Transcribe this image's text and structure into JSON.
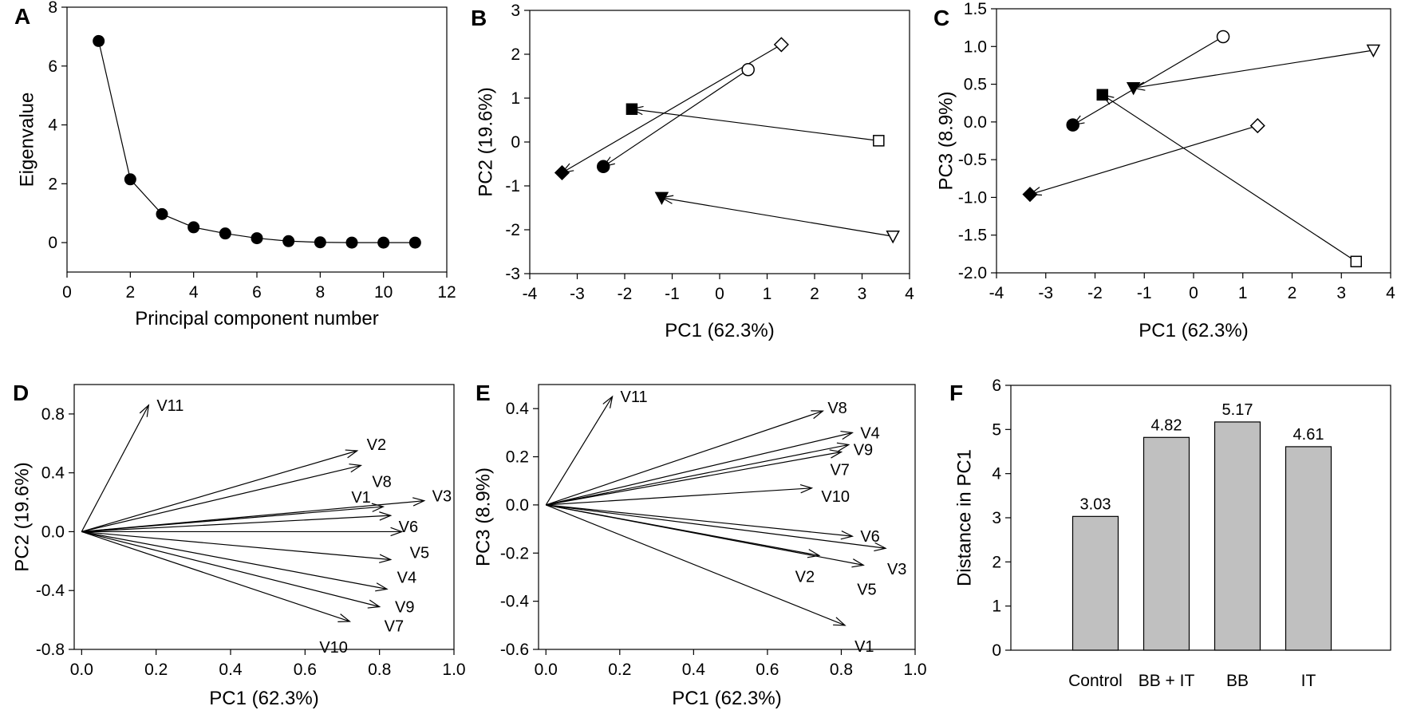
{
  "chart_data": [
    {
      "panel": "A",
      "type": "line",
      "xlabel": "Principal component number",
      "ylabel": "Eigenvalue",
      "xlim": [
        0,
        12
      ],
      "ylim": [
        -1,
        8
      ],
      "xticks": [
        "0",
        "2",
        "4",
        "6",
        "8",
        "10",
        "12"
      ],
      "yticks": [
        "0",
        "2",
        "4",
        "6",
        "8"
      ],
      "x": [
        1,
        2,
        3,
        4,
        5,
        6,
        7,
        8,
        9,
        10,
        11
      ],
      "y": [
        6.85,
        2.15,
        0.97,
        0.52,
        0.31,
        0.15,
        0.05,
        0.01,
        0.0,
        0.0,
        0.0
      ]
    },
    {
      "panel": "B",
      "type": "scatter",
      "xlabel": "PC1 (62.3%)",
      "ylabel": "PC2 (19.6%)",
      "xlim": [
        -4,
        4
      ],
      "ylim": [
        -3,
        3
      ],
      "xticks": [
        "-4",
        "-3",
        "-2",
        "-1",
        "0",
        "1",
        "2",
        "3",
        "4"
      ],
      "yticks": [
        "-3",
        "-2",
        "-1",
        "0",
        "1",
        "2",
        "3"
      ],
      "series": [
        {
          "marker": "diamond",
          "from": [
            1.3,
            2.22
          ],
          "to": [
            -3.32,
            -0.7
          ]
        },
        {
          "marker": "circle",
          "from": [
            0.6,
            1.65
          ],
          "to": [
            -2.45,
            -0.56
          ]
        },
        {
          "marker": "square",
          "from": [
            3.35,
            0.03
          ],
          "to": [
            -1.85,
            0.75
          ]
        },
        {
          "marker": "triangle-down",
          "from": [
            3.65,
            -2.15
          ],
          "to": [
            -1.22,
            -1.27
          ]
        }
      ]
    },
    {
      "panel": "C",
      "type": "scatter",
      "xlabel": "PC1 (62.3%)",
      "ylabel": "PC3 (8.9%)",
      "xlim": [
        -4,
        4
      ],
      "ylim": [
        -2,
        1.5
      ],
      "xticks": [
        "-4",
        "-3",
        "-2",
        "-1",
        "0",
        "1",
        "2",
        "3",
        "4"
      ],
      "yticks": [
        "-2.0",
        "-1.5",
        "-1.0",
        "-0.5",
        "0.0",
        "0.5",
        "1.0",
        "1.5"
      ],
      "series": [
        {
          "marker": "diamond",
          "from": [
            1.3,
            -0.05
          ],
          "to": [
            -3.32,
            -0.96
          ]
        },
        {
          "marker": "circle",
          "from": [
            0.6,
            1.13
          ],
          "to": [
            -2.45,
            -0.04
          ]
        },
        {
          "marker": "square",
          "from": [
            3.3,
            -1.85
          ],
          "to": [
            -1.85,
            0.36
          ]
        },
        {
          "marker": "triangle-down",
          "from": [
            3.65,
            0.95
          ],
          "to": [
            -1.22,
            0.45
          ]
        }
      ]
    },
    {
      "panel": "D",
      "type": "vector",
      "xlabel": "PC1 (62.3%)",
      "ylabel": "PC2 (19.6%)",
      "xlim": [
        -0.02,
        1.0
      ],
      "ylim": [
        -0.8,
        1.0
      ],
      "xticks": [
        "0.0",
        "0.2",
        "0.4",
        "0.6",
        "0.8",
        "1.0"
      ],
      "yticks": [
        "-0.8",
        "-0.4",
        "0.0",
        "0.4",
        "0.8"
      ],
      "labels": [
        "V1",
        "V2",
        "V3",
        "V4",
        "V5",
        "V6",
        "V7",
        "V8",
        "V9",
        "V10",
        "V11"
      ],
      "x": [
        0.81,
        0.74,
        0.92,
        0.83,
        0.86,
        0.83,
        0.8,
        0.75,
        0.82,
        0.72,
        0.18
      ],
      "y": [
        0.17,
        0.55,
        0.21,
        -0.19,
        0.0,
        0.11,
        -0.51,
        0.45,
        -0.39,
        -0.61,
        0.86
      ]
    },
    {
      "panel": "E",
      "type": "vector",
      "xlabel": "PC1 (62.3%)",
      "ylabel": "PC3 (8.9%)",
      "xlim": [
        -0.02,
        1.0
      ],
      "ylim": [
        -0.6,
        0.5
      ],
      "xticks": [
        "0.0",
        "0.2",
        "0.4",
        "0.6",
        "0.8",
        "1.0"
      ],
      "yticks": [
        "-0.6",
        "-0.4",
        "-0.2",
        "0.0",
        "0.2",
        "0.4"
      ],
      "labels": [
        "V1",
        "V2",
        "V3",
        "V4",
        "V5",
        "V6",
        "V7",
        "V8",
        "V9",
        "V10",
        "V11"
      ],
      "x": [
        0.81,
        0.74,
        0.92,
        0.83,
        0.86,
        0.83,
        0.8,
        0.75,
        0.82,
        0.72,
        0.18
      ],
      "y": [
        -0.5,
        -0.21,
        -0.18,
        0.3,
        -0.25,
        -0.13,
        0.22,
        0.39,
        0.25,
        0.07,
        0.45
      ]
    },
    {
      "panel": "F",
      "type": "bar",
      "xlabel": "",
      "ylabel": "Distance in PC1",
      "ylim": [
        0,
        6
      ],
      "yticks": [
        "0",
        "1",
        "2",
        "3",
        "4",
        "5",
        "6"
      ],
      "categories": [
        "Control",
        "BB + IT",
        "BB",
        "IT"
      ],
      "values": [
        3.03,
        4.82,
        5.17,
        4.61
      ],
      "data_labels": [
        "3.03",
        "4.82",
        "5.17",
        "4.61"
      ],
      "bar_color": "#c0c0c0"
    }
  ]
}
